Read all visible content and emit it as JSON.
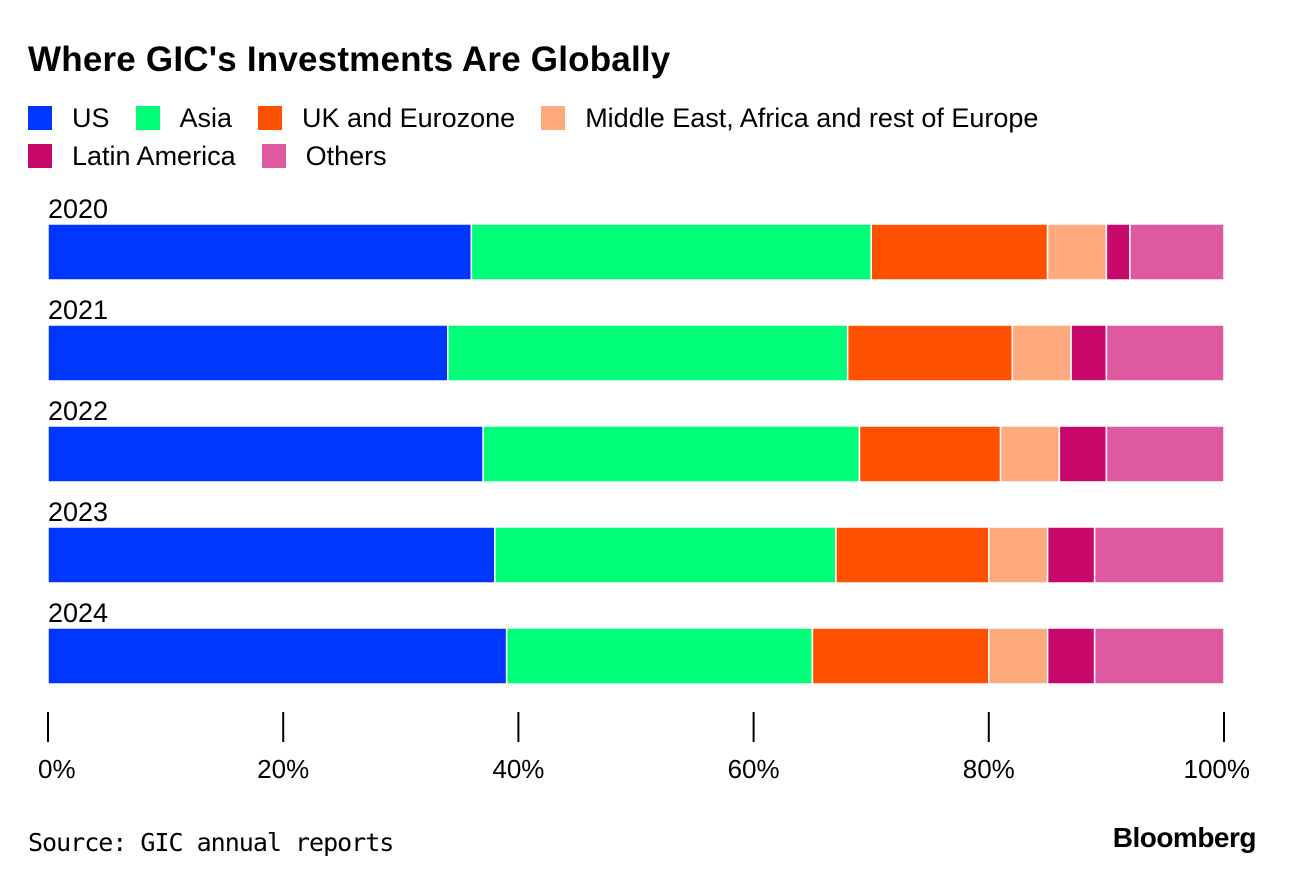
{
  "chart_data": {
    "type": "bar",
    "orientation": "horizontal",
    "stacked": true,
    "title": "Where GIC's Investments Are Globally",
    "categories": [
      "2020",
      "2021",
      "2022",
      "2023",
      "2024"
    ],
    "series": [
      {
        "name": "US",
        "color": "#0037ff",
        "values": [
          36,
          34,
          37,
          38,
          39
        ]
      },
      {
        "name": "Asia",
        "color": "#00ff79",
        "values": [
          34,
          34,
          32,
          29,
          26
        ]
      },
      {
        "name": "UK and Eurozone",
        "color": "#ff5100",
        "values": [
          15,
          14,
          12,
          13,
          15
        ]
      },
      {
        "name": "Middle East, Africa and rest of Europe",
        "color": "#ffa97e",
        "values": [
          5,
          5,
          5,
          5,
          5
        ]
      },
      {
        "name": "Latin America",
        "color": "#c8086b",
        "values": [
          2,
          3,
          4,
          4,
          4
        ]
      },
      {
        "name": "Others",
        "color": "#de599f",
        "values": [
          8,
          10,
          10,
          11,
          11
        ]
      }
    ],
    "xlim": [
      0,
      100
    ],
    "xticks": [
      "0%",
      "20%",
      "40%",
      "60%",
      "80%",
      "100%"
    ],
    "xlabel": "",
    "ylabel": "",
    "legend_position": "top",
    "grid": false
  },
  "footer": {
    "source": "Source: GIC annual reports",
    "brand": "Bloomberg"
  }
}
